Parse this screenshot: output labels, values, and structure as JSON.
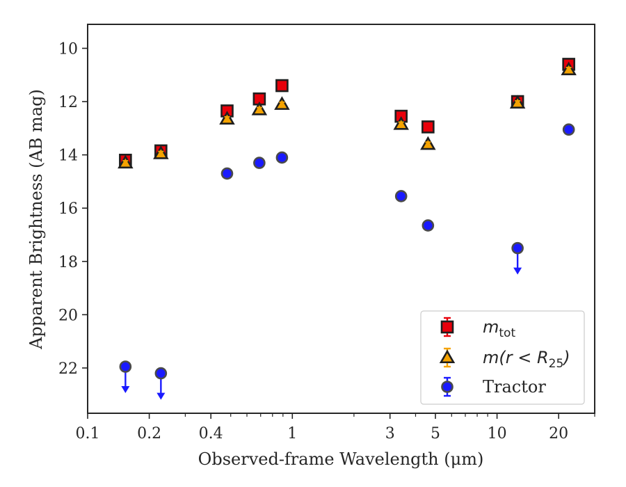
{
  "chart_data": {
    "type": "scatter",
    "xlabel": "Observed-frame Wavelength (μm)",
    "ylabel": "Apparent Brightness (AB mag)",
    "xscale": "log",
    "xlim": [
      0.1,
      30
    ],
    "ylim": [
      23.7,
      9.1
    ],
    "y_inverted": true,
    "x_ticks": [
      {
        "value": 0.1,
        "label": "0.1"
      },
      {
        "value": 0.2,
        "label": "0.2"
      },
      {
        "value": 0.4,
        "label": "0.4"
      },
      {
        "value": 1,
        "label": "1"
      },
      {
        "value": 3,
        "label": "3"
      },
      {
        "value": 5,
        "label": "5"
      },
      {
        "value": 10,
        "label": "10"
      },
      {
        "value": 20,
        "label": "20"
      }
    ],
    "x_minor_ticks": [
      0.3,
      0.5,
      0.6,
      0.7,
      0.8,
      0.9,
      2,
      4,
      6,
      7,
      8,
      9,
      30
    ],
    "y_ticks": [
      10,
      12,
      14,
      16,
      18,
      20,
      22
    ],
    "grid": false,
    "legend_position": "bottom-right",
    "series": [
      {
        "name": "m_tot",
        "marker": "square",
        "color": "#e8000b",
        "edge_color": "#1f1f1f",
        "x": [
          0.153,
          0.228,
          0.48,
          0.69,
          0.89,
          3.4,
          4.6,
          12.6,
          22.4
        ],
        "y": [
          14.2,
          13.85,
          12.35,
          11.9,
          11.4,
          12.55,
          12.95,
          12.0,
          10.6
        ],
        "yerr": [
          0.1,
          0.1,
          0.1,
          0.1,
          0.1,
          0.1,
          0.1,
          0.1,
          0.1
        ]
      },
      {
        "name": "m(r < R25)",
        "marker": "triangle",
        "color": "#f5a300",
        "edge_color": "#1f1f1f",
        "x": [
          0.153,
          0.228,
          0.48,
          0.69,
          0.89,
          3.4,
          4.6,
          12.6,
          22.4
        ],
        "y": [
          14.3,
          13.95,
          12.65,
          12.3,
          12.1,
          12.85,
          13.6,
          12.05,
          10.8
        ],
        "yerr": [
          0.05,
          0.05,
          0.05,
          0.05,
          0.05,
          0.05,
          0.05,
          0.05,
          0.05
        ]
      },
      {
        "name": "Tractor",
        "marker": "circle",
        "color": "#1a1aff",
        "edge_color": "#4a4a4a",
        "x": [
          0.153,
          0.228,
          0.48,
          0.69,
          0.89,
          3.4,
          4.6,
          12.6,
          22.4
        ],
        "y": [
          21.95,
          22.2,
          14.7,
          14.3,
          14.1,
          15.55,
          16.65,
          17.5,
          13.05
        ],
        "yerr": [
          0.05,
          0.05,
          0.05,
          0.05,
          0.05,
          0.05,
          0.05,
          0.05,
          0.05
        ],
        "upper_limit": [
          true,
          true,
          false,
          false,
          false,
          false,
          false,
          true,
          false
        ]
      }
    ],
    "legend": [
      {
        "series": 0,
        "math": "m",
        "sub": "tot",
        "text": ""
      },
      {
        "series": 1,
        "math": "m(r < R",
        "sub": "25",
        "text": ")"
      },
      {
        "series": 2,
        "math": "",
        "sub": "",
        "text": "Tractor"
      }
    ]
  }
}
